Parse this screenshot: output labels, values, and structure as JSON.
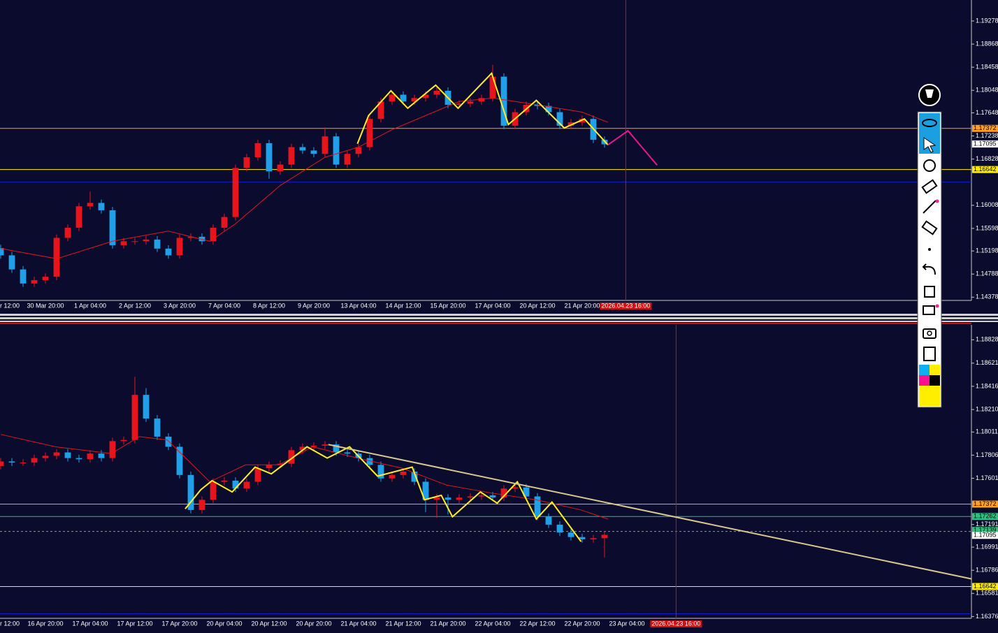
{
  "chart_data": [
    {
      "type": "candlestick",
      "categories": [
        "r 12:00",
        null,
        null,
        null,
        "30 Mar 20:00",
        null,
        null,
        null,
        "1 Apr 04:00",
        null,
        null,
        null,
        "2 Apr 12:00",
        null,
        null,
        null,
        "3 Apr 20:00",
        null,
        null,
        null,
        "7 Apr 04:00",
        null,
        null,
        null,
        "8 Apr 12:00",
        null,
        null,
        null,
        "9 Apr 20:00",
        null,
        null,
        null,
        "13 Apr 04:00",
        null,
        null,
        null,
        "14 Apr 12:00",
        null,
        null,
        null,
        "15 Apr 20:00",
        null,
        null,
        null,
        "17 Apr 04:00",
        null,
        null,
        null,
        "20 Apr 12:00",
        null,
        null,
        null,
        "21 Apr 20:00",
        null,
        null
      ],
      "open": [
        1.1525,
        1.1512,
        1.1487,
        1.1462,
        1.1468,
        1.1474,
        1.1543,
        1.1561,
        1.1599,
        1.1605,
        1.1592,
        1.153,
        1.1537,
        1.1537,
        1.154,
        1.1524,
        1.1512,
        1.1543,
        1.1545,
        1.1537,
        1.1561,
        1.158,
        1.1667,
        1.1686,
        1.1711,
        1.1661,
        1.1673,
        1.1704,
        1.1698,
        1.1692,
        1.1723,
        1.1673,
        1.1692,
        1.1704,
        1.1754,
        1.1785,
        1.1797,
        1.1785,
        1.1791,
        1.1797,
        1.1804,
        1.1779,
        1.1781,
        1.1785,
        1.1791,
        1.1829,
        1.1742,
        1.1766,
        1.1779,
        1.1777,
        1.1766,
        1.1742,
        1.1748,
        1.1754,
        1.1717
      ],
      "high": [
        1.1531,
        1.1518,
        1.1493,
        1.1474,
        1.148,
        1.1549,
        1.1567,
        1.1605,
        1.1625,
        1.1611,
        1.1598,
        1.1543,
        1.1543,
        1.1546,
        1.1546,
        1.153,
        1.1549,
        1.1551,
        1.1551,
        1.1567,
        1.1586,
        1.1673,
        1.1692,
        1.1717,
        1.1717,
        1.1679,
        1.171,
        1.171,
        1.1704,
        1.1739,
        1.1729,
        1.1698,
        1.171,
        1.176,
        1.1791,
        1.1803,
        1.1803,
        1.1797,
        1.1803,
        1.181,
        1.181,
        1.1787,
        1.1791,
        1.1797,
        1.185,
        1.1835,
        1.1772,
        1.1785,
        1.1785,
        1.1783,
        1.1772,
        1.1754,
        1.176,
        1.176,
        1.1723
      ],
      "low": [
        1.1506,
        1.1481,
        1.1456,
        1.1456,
        1.1462,
        1.1468,
        1.1537,
        1.1555,
        1.1593,
        1.1586,
        1.1524,
        1.1524,
        1.1531,
        1.1531,
        1.1518,
        1.1506,
        1.1506,
        1.1537,
        1.1531,
        1.1531,
        1.1555,
        1.1574,
        1.1661,
        1.168,
        1.1648,
        1.1655,
        1.1667,
        1.1692,
        1.1686,
        1.1686,
        1.1667,
        1.1667,
        1.1686,
        1.1698,
        1.1748,
        1.1779,
        1.1779,
        1.1779,
        1.1785,
        1.1791,
        1.1773,
        1.1773,
        1.1775,
        1.1779,
        1.1785,
        1.1736,
        1.1736,
        1.176,
        1.1771,
        1.176,
        1.1736,
        1.1736,
        1.1742,
        1.1711,
        1.1703
      ],
      "close": [
        1.1512,
        1.1487,
        1.1462,
        1.1468,
        1.1474,
        1.1543,
        1.1561,
        1.1599,
        1.1605,
        1.1592,
        1.153,
        1.1537,
        1.1537,
        1.154,
        1.1524,
        1.1512,
        1.1543,
        1.1545,
        1.1537,
        1.1561,
        1.158,
        1.1667,
        1.1686,
        1.1711,
        1.1661,
        1.1673,
        1.1704,
        1.1698,
        1.1692,
        1.1723,
        1.1673,
        1.1692,
        1.1704,
        1.1754,
        1.1785,
        1.1797,
        1.1785,
        1.1791,
        1.1797,
        1.1804,
        1.1779,
        1.1781,
        1.1785,
        1.1791,
        1.1829,
        1.1742,
        1.1766,
        1.1779,
        1.1777,
        1.1766,
        1.1742,
        1.1748,
        1.1754,
        1.1717,
        1.1709
      ],
      "up_color": "#e8141c",
      "down_color": "#1fa0e8",
      "xlim": [
        -0.0625,
        86.8125
      ],
      "ylim": [
        1.1432,
        1.1965
      ],
      "yticks": [
        1.19278,
        1.18868,
        1.18458,
        1.18048,
        1.17648,
        1.17238,
        1.16828,
        1.16008,
        1.15598,
        1.15198,
        1.14788,
        1.14378
      ],
      "overlays": [
        {
          "type": "line",
          "color": "#e01818",
          "width": 1,
          "x": [
            0,
            5,
            10,
            15,
            18.7,
            21,
            25,
            29,
            32,
            35,
            38,
            41,
            44,
            48,
            52,
            54.3
          ],
          "values": [
            1.1524,
            1.1506,
            1.1537,
            1.1555,
            1.1537,
            1.1568,
            1.1636,
            1.1686,
            1.1704,
            1.1735,
            1.176,
            1.1785,
            1.1791,
            1.1779,
            1.1766,
            1.1748
          ]
        },
        {
          "type": "line",
          "color": "#ffee22",
          "width": 2,
          "x": [
            31.9,
            32.9,
            34.9,
            36.4,
            38.9,
            40.9,
            43.9,
            45.4,
            47.9,
            50.4,
            52.2,
            54.3
          ],
          "values": [
            1.171,
            1.176,
            1.1804,
            1.1773,
            1.1814,
            1.1773,
            1.1835,
            1.1744,
            1.1787,
            1.1738,
            1.1754,
            1.1708
          ]
        },
        {
          "type": "line",
          "color": "#e8188c",
          "width": 2,
          "x": [
            54.3,
            56.1,
            58.7
          ],
          "values": [
            1.1708,
            1.1733,
            1.1672
          ]
        }
      ],
      "levels": [
        {
          "value": 1.17372,
          "color": "#ffa020",
          "line": true,
          "axis_label": true
        },
        {
          "value": 1.17095,
          "color": "#ffffff",
          "line": false,
          "axis_label": true
        },
        {
          "value": 1.16642,
          "color": "#ffee00",
          "line": true,
          "axis_label": true
        },
        {
          "value": 1.1642,
          "color": "#1020d0",
          "line": true,
          "axis_label": false
        }
      ],
      "marker": {
        "x": 55.9,
        "label": "2026.04.23 16:00",
        "color": "#d01010"
      }
    },
    {
      "type": "candlestick",
      "categories": [
        "r 12:00",
        null,
        null,
        null,
        "16 Apr 20:00",
        null,
        null,
        null,
        "17 Apr 04:00",
        null,
        null,
        null,
        "17 Apr 12:00",
        null,
        null,
        null,
        "17 Apr 20:00",
        null,
        null,
        null,
        "20 Apr 04:00",
        null,
        null,
        null,
        "20 Apr 12:00",
        null,
        null,
        null,
        "20 Apr 20:00",
        null,
        null,
        null,
        "21 Apr 04:00",
        null,
        null,
        null,
        "21 Apr 12:00",
        null,
        null,
        null,
        "21 Apr 20:00",
        null,
        null,
        null,
        "22 Apr 04:00",
        null,
        null,
        null,
        "22 Apr 12:00",
        null,
        null,
        null,
        "22 Apr 20:00",
        null,
        null,
        null,
        "23 Apr 04:00"
      ],
      "open": [
        1.1771,
        1.1775,
        1.1774,
        1.1774,
        1.1778,
        1.178,
        1.1783,
        1.1778,
        1.1777,
        1.1782,
        1.1778,
        1.1793,
        1.1794,
        1.1834,
        1.1813,
        1.1797,
        1.1788,
        1.1763,
        1.1732,
        1.1741,
        1.1757,
        1.1758,
        1.1751,
        1.1757,
        1.1769,
        1.1772,
        1.1773,
        1.1785,
        1.1788,
        1.1789,
        1.179,
        1.1783,
        1.1782,
        1.1778,
        1.1772,
        1.176,
        1.1763,
        1.1766,
        1.1757,
        1.1741,
        1.1743,
        1.1741,
        1.1743,
        1.1744,
        1.1745,
        1.1743,
        1.1751,
        1.1752,
        1.1744,
        1.1726,
        1.1719,
        1.1712,
        1.1708,
        1.1706,
        1.1707,
        null,
        null
      ],
      "high": [
        1.1778,
        1.1778,
        1.1777,
        1.1781,
        1.1783,
        1.1786,
        1.1786,
        1.1781,
        1.1785,
        1.1785,
        1.1796,
        1.1797,
        1.185,
        1.184,
        1.1816,
        1.18,
        1.1791,
        1.1766,
        1.1744,
        1.176,
        1.1761,
        1.1761,
        1.176,
        1.1772,
        1.1775,
        1.1776,
        1.1788,
        1.1791,
        1.1792,
        1.1793,
        1.1793,
        1.1786,
        1.1785,
        1.1781,
        1.1775,
        1.1766,
        1.1769,
        1.1769,
        1.176,
        1.1746,
        1.1746,
        1.1746,
        1.1747,
        1.1748,
        1.1748,
        1.1754,
        1.1755,
        1.1755,
        1.1747,
        1.1729,
        1.1722,
        1.1715,
        1.1711,
        1.171,
        1.1713,
        null,
        null
      ],
      "low": [
        1.1768,
        1.1771,
        1.1771,
        1.1771,
        1.1775,
        1.1777,
        1.1775,
        1.1774,
        1.1774,
        1.1775,
        1.1775,
        1.179,
        1.1791,
        1.181,
        1.1794,
        1.1785,
        1.176,
        1.1729,
        1.1729,
        1.1738,
        1.1754,
        1.1748,
        1.1748,
        1.1754,
        1.1766,
        1.1769,
        1.177,
        1.1782,
        1.1785,
        1.1786,
        1.178,
        1.1779,
        1.1775,
        1.1769,
        1.1757,
        1.1757,
        1.176,
        1.1754,
        1.173,
        1.1725,
        1.1728,
        1.1738,
        1.174,
        1.1741,
        1.174,
        1.174,
        1.1748,
        1.1741,
        1.1723,
        1.1716,
        1.1709,
        1.1705,
        1.1703,
        1.1703,
        1.169,
        null,
        null
      ],
      "close": [
        1.1775,
        1.1774,
        1.1774,
        1.1778,
        1.178,
        1.1783,
        1.1778,
        1.1777,
        1.1782,
        1.1778,
        1.1793,
        1.1794,
        1.1834,
        1.1813,
        1.1797,
        1.1788,
        1.1763,
        1.1732,
        1.1741,
        1.1757,
        1.1758,
        1.1751,
        1.1757,
        1.1769,
        1.1772,
        1.1773,
        1.1785,
        1.1788,
        1.1789,
        1.179,
        1.1783,
        1.1782,
        1.1778,
        1.1772,
        1.176,
        1.1763,
        1.1766,
        1.1757,
        1.1741,
        1.1743,
        1.1741,
        1.1743,
        1.1744,
        1.1745,
        1.1743,
        1.1751,
        1.1752,
        1.1744,
        1.1726,
        1.1719,
        1.1712,
        1.1708,
        1.1706,
        1.1707,
        1.171,
        null,
        null
      ],
      "up_color": "#e8141c",
      "down_color": "#1fa0e8",
      "xlim": [
        -0.0625,
        86.8125
      ],
      "ylim": [
        1.1636,
        1.1896
      ],
      "yticks": [
        1.18828,
        1.18621,
        1.18416,
        {
          "value": 1.1821,
          "label": "1.18210"
        },
        1.18011,
        1.17806,
        1.17601,
        1.17191,
        1.16991,
        1.16786,
        1.16581,
        1.16376
      ],
      "overlays": [
        {
          "type": "line",
          "color": "#e01818",
          "width": 1,
          "x": [
            0,
            4.9,
            9.9,
            12.4,
            14.9,
            18.7,
            21.9,
            24.9,
            27.9,
            31.9,
            35.9,
            39.9,
            43.9,
            47.9,
            51.9,
            54.3
          ],
          "values": [
            1.1799,
            1.1788,
            1.1782,
            1.1797,
            1.1794,
            1.1757,
            1.1772,
            1.1772,
            1.1788,
            1.1778,
            1.1769,
            1.1754,
            1.1747,
            1.1741,
            1.1732,
            1.1724
          ]
        },
        {
          "type": "line",
          "color": "#ffee22",
          "width": 2,
          "x": [
            16.5,
            17.9,
            18.9,
            20.7,
            22.75,
            24.2,
            27.4,
            29.2,
            31.2,
            33.7,
            36.8,
            37.9,
            39.4,
            40.4,
            42.9,
            44.4,
            46.2,
            47.9,
            49.3,
            51.9
          ],
          "values": [
            1.1733,
            1.175,
            1.1758,
            1.1748,
            1.177,
            1.1764,
            1.1788,
            1.1778,
            1.1788,
            1.1762,
            1.177,
            1.1741,
            1.1745,
            1.1726,
            1.1748,
            1.1738,
            1.1757,
            1.1724,
            1.1739,
            1.1704
          ]
        },
        {
          "type": "line",
          "color": "#d8c890",
          "width": 2,
          "x": [
            29.3,
            86.8
          ],
          "values": [
            1.179,
            1.1671
          ]
        }
      ],
      "levels": [
        {
          "value": 1.17372,
          "color": "#ffa020",
          "line": true,
          "axis_label": true
        },
        {
          "value": 1.17262,
          "color": "#30c080",
          "line": true,
          "axis_label": true
        },
        {
          "value": 1.17139,
          "color": "#30c080",
          "line": false,
          "axis_label": true
        },
        {
          "value": 1.1713,
          "color": "#8898a8",
          "line": true,
          "dash": true,
          "axis_label": false
        },
        {
          "value": 1.17095,
          "color": "#ffffff",
          "line": false,
          "axis_label": true
        },
        {
          "value": 1.16642,
          "color": "#ffee00",
          "line": true,
          "axis_label": true
        },
        {
          "value": 1.164,
          "color": "#1020d0",
          "line": true,
          "axis_label": false
        }
      ],
      "marker": {
        "x": 60.4,
        "label": "2026.04.23 16:00",
        "color": "#d01010"
      }
    }
  ]
}
